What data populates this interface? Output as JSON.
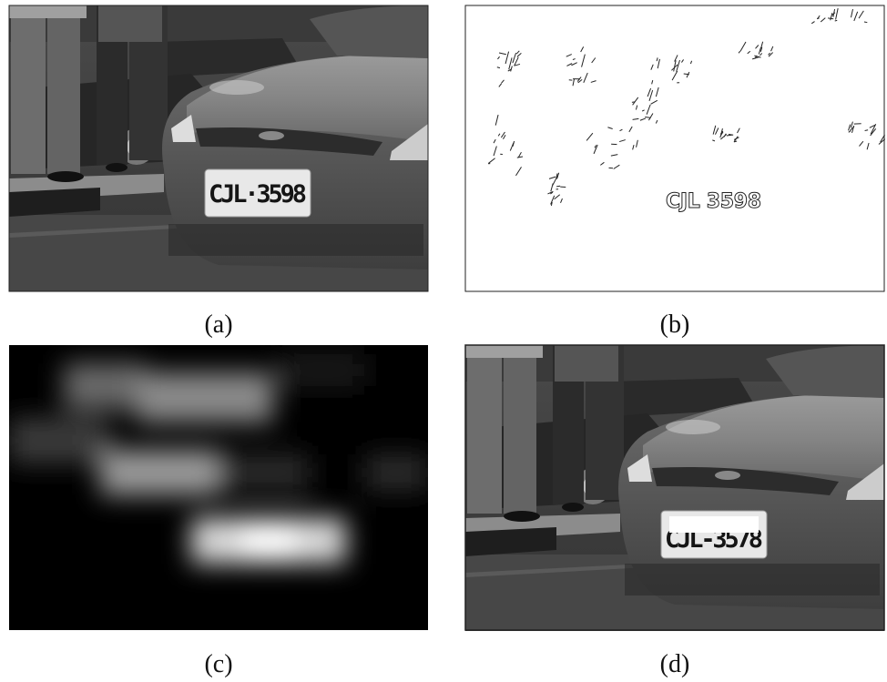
{
  "figure": {
    "panels": [
      {
        "caption": "(a)",
        "plate_text": "CJL·3598"
      },
      {
        "caption": "(b)",
        "plate_text": "CJL 3598"
      },
      {
        "caption": "(c)"
      },
      {
        "caption": "(d)",
        "plate_text": "CJL-3578"
      }
    ]
  }
}
